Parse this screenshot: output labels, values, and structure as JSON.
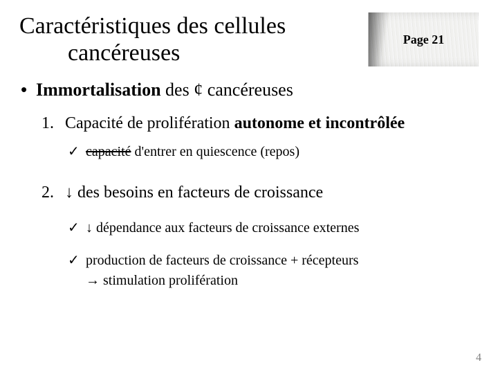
{
  "title_line1": "Caractéristiques des cellules",
  "title_line2": "cancéreuses",
  "page_label": "Page 21",
  "main_bullet_bold": "Immortalisation",
  "main_bullet_rest": " des ¢ cancéreuses",
  "item1": {
    "num": "1.",
    "text_pre": "Capacité de prolifération ",
    "text_bold": "autonome et incontrôlée",
    "sub_strike": "capacité",
    "sub_rest": " d'entrer en quiescence (repos)"
  },
  "item2": {
    "num": "2.",
    "text": "↓ des besoins en facteurs de croissance",
    "sub1": "↓ dépendance aux facteurs de croissance externes",
    "sub2": "production de facteurs de croissance  + récepteurs",
    "sub2b": "→ stimulation prolifération"
  },
  "slide_number": "4",
  "checkmark": "✓",
  "bullet": "•"
}
